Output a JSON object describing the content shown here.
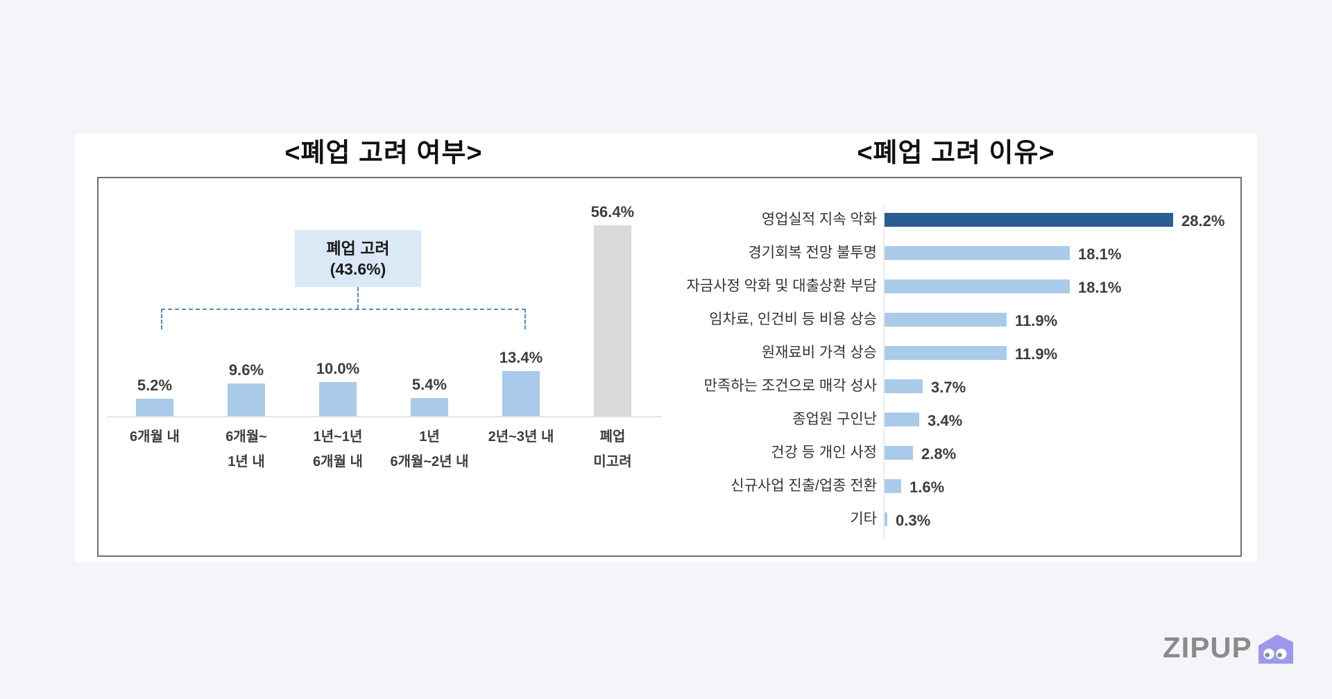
{
  "page": {
    "background_color": "#f5f4f8",
    "panel_color": "#ffffff"
  },
  "logo": {
    "text": "ZIPUP",
    "text_color": "#8b8b8b",
    "house_color": "#9c99ea"
  },
  "chart_data": [
    {
      "type": "bar",
      "orientation": "vertical",
      "title": "<폐업 고려 여부>",
      "annotation": {
        "line1": "폐업 고려",
        "line2": "(43.6%)",
        "note": "dashed bracket groups the first five bars"
      },
      "categories": [
        [
          "6개월 내"
        ],
        [
          "6개월~",
          "1년 내"
        ],
        [
          "1년~1년",
          "6개월 내"
        ],
        [
          "1년",
          "6개월~2년 내"
        ],
        [
          "2년~3년 내"
        ],
        [
          "폐업",
          "미고려"
        ]
      ],
      "values": [
        5.2,
        9.6,
        10.0,
        5.4,
        13.4,
        56.4
      ],
      "value_labels": [
        "5.2%",
        "9.6%",
        "10.0%",
        "5.4%",
        "13.4%",
        "56.4%"
      ],
      "bar_colors": [
        "#a9cbe9",
        "#a9cbe9",
        "#a9cbe9",
        "#a9cbe9",
        "#a9cbe9",
        "#d9d9d9"
      ],
      "ylim": [
        0,
        60
      ],
      "grid": false,
      "legend": false
    },
    {
      "type": "bar",
      "orientation": "horizontal",
      "title": "<폐업 고려 이유>",
      "categories": [
        "영업실적 지속 악화",
        "경기회복 전망 불투명",
        "자금사정 악화 및 대출상환 부담",
        "임차료, 인건비 등 비용 상승",
        "원재료비 가격 상승",
        "만족하는 조건으로 매각 성사",
        "종업원 구인난",
        "건강 등 개인 사정",
        "신규사업 진출/업종 전환",
        "기타"
      ],
      "values": [
        28.2,
        18.1,
        18.1,
        11.9,
        11.9,
        3.7,
        3.4,
        2.8,
        1.6,
        0.3
      ],
      "value_labels": [
        "28.2%",
        "18.1%",
        "18.1%",
        "11.9%",
        "11.9%",
        "3.7%",
        "3.4%",
        "2.8%",
        "1.6%",
        "0.3%"
      ],
      "bar_colors": [
        "#2b5d92",
        "#a9cbe9",
        "#a9cbe9",
        "#a9cbe9",
        "#a9cbe9",
        "#a9cbe9",
        "#a9cbe9",
        "#a9cbe9",
        "#a9cbe9",
        "#a9cbe9"
      ],
      "xlim": [
        0,
        30
      ],
      "grid": false,
      "legend": false
    }
  ]
}
